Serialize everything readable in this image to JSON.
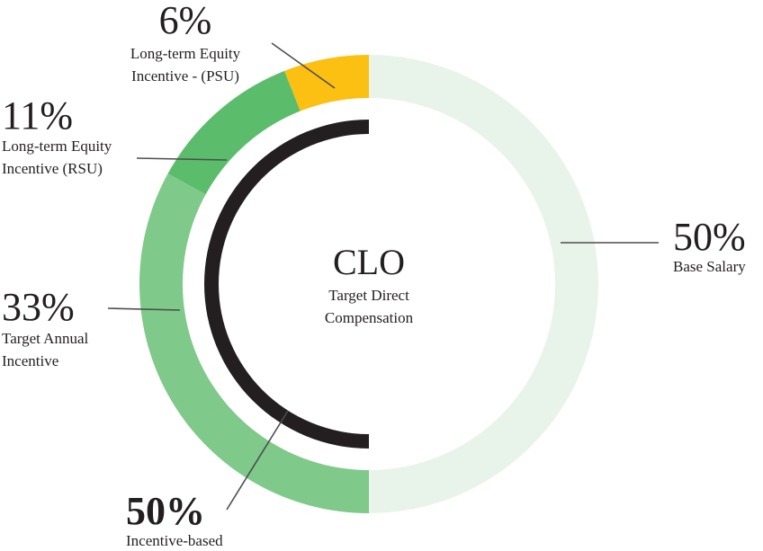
{
  "chart_data": {
    "type": "pie",
    "variant": "donut",
    "title": "CLO",
    "subtitle_lines": [
      "Target Direct",
      "Compensation"
    ],
    "slices": [
      {
        "name": "Base Salary",
        "value": 50,
        "pct_label": "50%",
        "label_lines": [
          "Base Salary"
        ],
        "color": "#e8f4ea"
      },
      {
        "name": "Target Annual Incentive",
        "value": 33,
        "pct_label": "33%",
        "label_lines": [
          "Target Annual",
          "Incentive"
        ],
        "color": "#7fc98a"
      },
      {
        "name": "Long-term Equity Incentive (RSU)",
        "value": 11,
        "pct_label": "11%",
        "label_lines": [
          "Long-term Equity",
          "Incentive (RSU)"
        ],
        "color": "#5bbd6c"
      },
      {
        "name": "Long-term Equity Incentive - (PSU)",
        "value": 6,
        "pct_label": "6%",
        "label_lines": [
          "Long-term Equity",
          "Incentive - (PSU)"
        ],
        "color": "#fcc012"
      }
    ],
    "inner_arc": {
      "name": "Incentive-based",
      "value": 50,
      "pct_label": "50%",
      "label": "Incentive-based",
      "color": "#231f20"
    }
  }
}
